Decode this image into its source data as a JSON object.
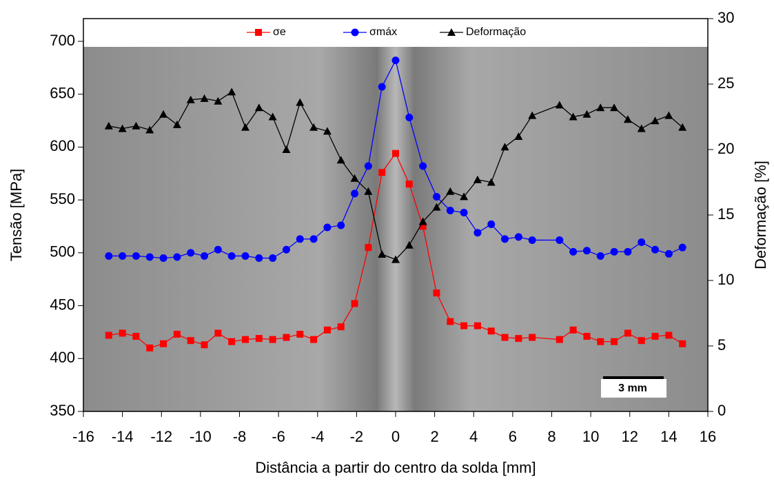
{
  "chart_data": {
    "type": "line",
    "x_label": "Distância a partir do centro da solda [mm]",
    "y_label": "Tensão [MPa]",
    "y2_label": "Deformação [%]",
    "annotation": "3 mm",
    "x": [
      -14.7,
      -14,
      -13.3,
      -12.6,
      -11.9,
      -11.2,
      -10.5,
      -9.8,
      -9.1,
      -8.4,
      -7.7,
      -7,
      -6.3,
      -5.6,
      -4.9,
      -4.2,
      -3.5,
      -2.8,
      -2.1,
      -1.4,
      -0.7,
      0,
      0.7,
      1.4,
      2.1,
      2.8,
      3.5,
      4.2,
      4.9,
      5.6,
      6.3,
      7,
      8.4,
      9.1,
      9.8,
      10.5,
      11.2,
      11.9,
      12.6,
      13.3,
      14,
      14.7
    ],
    "series": [
      {
        "name": "σe",
        "color": "#ff0000",
        "marker": "square",
        "values": [
          422,
          424,
          421,
          410,
          414,
          423,
          417,
          413,
          424,
          416,
          418,
          419,
          418,
          420,
          423,
          418,
          427,
          430,
          452,
          505,
          576,
          594,
          565,
          525,
          462,
          435,
          431,
          431,
          426,
          420,
          419,
          420,
          418,
          427,
          421,
          416,
          416,
          424,
          417,
          421,
          422,
          414
        ]
      },
      {
        "name": "σmáx",
        "color": "#0000ff",
        "marker": "circle",
        "values": [
          497,
          497,
          497,
          496,
          495,
          496,
          500,
          497,
          503,
          497,
          497,
          495,
          495,
          503,
          513,
          513,
          524,
          526,
          556,
          582,
          657,
          682,
          628,
          582,
          553,
          540,
          538,
          519,
          527,
          513,
          515,
          512,
          512,
          501,
          502,
          497,
          501,
          501,
          510,
          503,
          499,
          505
        ]
      },
      {
        "name": "Deformação",
        "color": "#000000",
        "marker": "triangle",
        "axis": "y2",
        "values": [
          21.8,
          21.6,
          21.8,
          21.5,
          22.7,
          21.9,
          23.8,
          23.9,
          23.7,
          24.4,
          21.7,
          23.2,
          22.5,
          20.0,
          23.6,
          21.7,
          21.4,
          19.2,
          17.8,
          16.8,
          12.0,
          11.6,
          12.7,
          14.5,
          15.6,
          16.8,
          16.4,
          17.7,
          17.5,
          20.2,
          21.0,
          22.6,
          23.4,
          22.5,
          22.7,
          23.2,
          23.2,
          22.3,
          21.6,
          22.2,
          22.6,
          21.7
        ]
      }
    ],
    "xlim": [
      -16,
      16
    ],
    "xticks": [
      -16,
      -14,
      -12,
      -10,
      -8,
      -6,
      -4,
      -2,
      0,
      2,
      4,
      6,
      8,
      10,
      12,
      14,
      16
    ],
    "ylim": [
      350,
      721.5
    ],
    "yticks": [
      350,
      400,
      450,
      500,
      550,
      600,
      650,
      700
    ],
    "y2lim": [
      0,
      30
    ],
    "y2ticks": [
      0,
      5,
      10,
      15,
      20,
      25,
      30
    ],
    "legend": "top"
  }
}
